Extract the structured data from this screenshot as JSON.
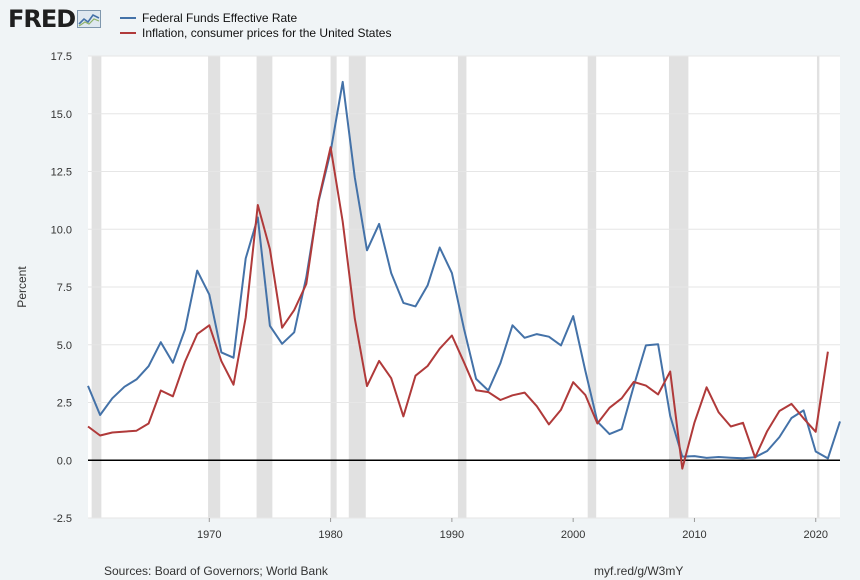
{
  "header": {
    "logo_text": "FRED",
    "logo_icon": "trend-graph-icon"
  },
  "colors": {
    "series1": "#4472a8",
    "series2": "#b03a3a",
    "recession": "#e1e1e1",
    "zero_line": "#000000",
    "grid": "#e6e6e6",
    "background": "#f0f4f6",
    "plot_background": "#ffffff"
  },
  "chart_data": {
    "type": "line",
    "title": "",
    "xlabel": "",
    "ylabel": "Percent",
    "xlim": [
      1960,
      2022
    ],
    "ylim": [
      -2.5,
      17.5
    ],
    "x_ticks": [
      1970,
      1980,
      1990,
      2000,
      2010,
      2020
    ],
    "y_ticks": [
      -2.5,
      0.0,
      2.5,
      5.0,
      7.5,
      10.0,
      12.5,
      15.0,
      17.5
    ],
    "y_tick_labels": [
      "-2.5",
      "0.0",
      "2.5",
      "5.0",
      "7.5",
      "10.0",
      "12.5",
      "15.0",
      "17.5"
    ],
    "grid": true,
    "legend_position": "top-left",
    "zero_line": true,
    "recessions": [
      [
        1960.3,
        1961.1
      ],
      [
        1969.9,
        1970.9
      ],
      [
        1973.9,
        1975.2
      ],
      [
        1980.0,
        1980.5
      ],
      [
        1981.5,
        1982.9
      ],
      [
        1990.5,
        1991.2
      ],
      [
        2001.2,
        2001.9
      ],
      [
        2007.9,
        2009.5
      ],
      [
        2020.1,
        2020.3
      ]
    ],
    "series": [
      {
        "name": "Federal Funds Effective Rate",
        "color": "#4472a8",
        "x": [
          1960,
          1961,
          1962,
          1963,
          1964,
          1965,
          1966,
          1967,
          1968,
          1969,
          1970,
          1971,
          1972,
          1973,
          1974,
          1975,
          1976,
          1977,
          1978,
          1979,
          1980,
          1981,
          1982,
          1983,
          1984,
          1985,
          1986,
          1987,
          1988,
          1989,
          1990,
          1991,
          1992,
          1993,
          1994,
          1995,
          1996,
          1997,
          1998,
          1999,
          2000,
          2001,
          2002,
          2003,
          2004,
          2005,
          2006,
          2007,
          2008,
          2009,
          2010,
          2011,
          2012,
          2013,
          2014,
          2015,
          2016,
          2017,
          2018,
          2019,
          2020,
          2021,
          2022
        ],
        "y": [
          3.22,
          1.96,
          2.68,
          3.18,
          3.5,
          4.07,
          5.11,
          4.22,
          5.66,
          8.21,
          7.17,
          4.67,
          4.44,
          8.74,
          10.51,
          5.82,
          5.04,
          5.54,
          7.93,
          11.19,
          13.36,
          16.38,
          12.24,
          9.09,
          10.23,
          8.1,
          6.81,
          6.66,
          7.57,
          9.21,
          8.1,
          5.69,
          3.52,
          3.02,
          4.2,
          5.84,
          5.3,
          5.46,
          5.35,
          4.97,
          6.24,
          3.88,
          1.67,
          1.13,
          1.35,
          3.22,
          4.97,
          5.02,
          1.92,
          0.16,
          0.18,
          0.1,
          0.14,
          0.11,
          0.09,
          0.13,
          0.4,
          1.0,
          1.83,
          2.16,
          0.38,
          0.08,
          1.68
        ]
      },
      {
        "name": "Inflation, consumer prices for the United States",
        "color": "#b03a3a",
        "x": [
          1960,
          1961,
          1962,
          1963,
          1964,
          1965,
          1966,
          1967,
          1968,
          1969,
          1970,
          1971,
          1972,
          1973,
          1974,
          1975,
          1976,
          1977,
          1978,
          1979,
          1980,
          1981,
          1982,
          1983,
          1984,
          1985,
          1986,
          1987,
          1988,
          1989,
          1990,
          1991,
          1992,
          1993,
          1994,
          1995,
          1996,
          1997,
          1998,
          1999,
          2000,
          2001,
          2002,
          2003,
          2004,
          2005,
          2006,
          2007,
          2008,
          2009,
          2010,
          2011,
          2012,
          2013,
          2014,
          2015,
          2016,
          2017,
          2018,
          2019,
          2020,
          2021
        ],
        "y": [
          1.46,
          1.07,
          1.2,
          1.24,
          1.28,
          1.59,
          3.02,
          2.77,
          4.27,
          5.46,
          5.84,
          4.29,
          3.27,
          6.18,
          11.05,
          9.14,
          5.74,
          6.5,
          7.63,
          11.25,
          13.55,
          10.33,
          6.13,
          3.21,
          4.3,
          3.55,
          1.9,
          3.66,
          4.08,
          4.83,
          5.4,
          4.24,
          3.03,
          2.95,
          2.61,
          2.81,
          2.93,
          2.34,
          1.55,
          2.19,
          3.38,
          2.83,
          1.59,
          2.27,
          2.68,
          3.39,
          3.23,
          2.85,
          3.84,
          -0.36,
          1.64,
          3.16,
          2.07,
          1.46,
          1.62,
          0.12,
          1.26,
          2.13,
          2.44,
          1.81,
          1.23,
          4.7
        ]
      }
    ]
  },
  "footer": {
    "source": "Sources: Board of Governors; World Bank",
    "url": "myf.red/g/W3mY"
  }
}
